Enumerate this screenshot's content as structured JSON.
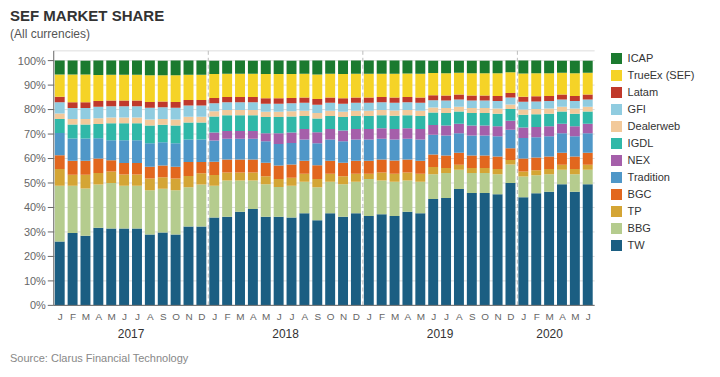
{
  "chart_data": {
    "type": "bar",
    "title": "SEF MARKET SHARE",
    "subtitle": "(All currencies)",
    "source": "Source: Clarus Financial Technology",
    "stacked": true,
    "grid": true,
    "categories": [
      "J",
      "F",
      "M",
      "A",
      "M",
      "J",
      "J",
      "A",
      "S",
      "O",
      "N",
      "D",
      "J",
      "F",
      "M",
      "A",
      "M",
      "J",
      "J",
      "A",
      "S",
      "O",
      "N",
      "D",
      "J",
      "F",
      "M",
      "A",
      "M",
      "J",
      "J",
      "A",
      "S",
      "O",
      "N",
      "D",
      "J",
      "F",
      "M",
      "A",
      "M",
      "J"
    ],
    "ylim": [
      0,
      104
    ],
    "yticks": [
      {
        "value": 0,
        "label": "0%"
      },
      {
        "value": 10,
        "label": "10%"
      },
      {
        "value": 20,
        "label": "20%"
      },
      {
        "value": 30,
        "label": "30%"
      },
      {
        "value": 40,
        "label": "40%"
      },
      {
        "value": 50,
        "label": "50%"
      },
      {
        "value": 60,
        "label": "60%"
      },
      {
        "value": 70,
        "label": "70%"
      },
      {
        "value": 80,
        "label": "80%"
      },
      {
        "value": 90,
        "label": "90%"
      },
      {
        "value": 100,
        "label": "100%"
      }
    ],
    "annotations": [
      {
        "text": "2017",
        "x": 5.5
      },
      {
        "text": "2018",
        "x": 17.5
      },
      {
        "text": "2019",
        "x": 29.5
      },
      {
        "text": "2020",
        "x": 38.0
      }
    ],
    "dividers": [
      11.5,
      23.5,
      35.5
    ],
    "series": [
      {
        "name": "TW",
        "color": "#1b5e82",
        "values": [
          26.14,
          29.55,
          28.41,
          31.76,
          31.4,
          31.4,
          31.4,
          28.92,
          29.76,
          28.92,
          32.18,
          32.18,
          35.87,
          36.17,
          38.3,
          39.36,
          36.26,
          36.26,
          35.87,
          37.63,
          34.83,
          37.63,
          36.26,
          37.63,
          36.56,
          37.23,
          36.56,
          38.3,
          37.63,
          43.43,
          43.88,
          47.52,
          45.92,
          45.92,
          45.36,
          50,
          44.21,
          45.83,
          46.39,
          49.5,
          46.39,
          49.5
        ]
      },
      {
        "name": "BBG",
        "color": "#b5cc8e",
        "values": [
          22.73,
          19.32,
          19.32,
          17.65,
          18.6,
          17.44,
          17.44,
          18.07,
          17.86,
          18.07,
          16.09,
          17.24,
          13.04,
          14.89,
          12.77,
          11.7,
          13.19,
          12.09,
          13.04,
          12.9,
          13.48,
          12.9,
          13.19,
          12.9,
          15.05,
          13.83,
          13.98,
          12.77,
          12.9,
          10.1,
          10.2,
          7.92,
          8.16,
          8.16,
          8.25,
          7.55,
          8.42,
          7.29,
          7.22,
          5.94,
          7.22,
          5.94
        ]
      },
      {
        "name": "TP",
        "color": "#d4a535",
        "values": [
          6.82,
          4.55,
          5.68,
          4.71,
          4.65,
          4.65,
          4.65,
          4.82,
          4.76,
          4.82,
          4.6,
          4.6,
          4.35,
          3.19,
          3.19,
          3.19,
          3.3,
          3.3,
          3.26,
          3.23,
          3.37,
          3.23,
          3.3,
          3.23,
          2.15,
          3.19,
          3.23,
          3.19,
          3.23,
          3.03,
          2.04,
          1.98,
          2.04,
          2.04,
          2.06,
          1.89,
          2.11,
          2.08,
          2.06,
          1.98,
          2.06,
          1.98
        ]
      },
      {
        "name": "BGC",
        "color": "#e2671e",
        "values": [
          5.68,
          5.68,
          5.68,
          5.88,
          4.65,
          4.65,
          4.65,
          4.82,
          4.76,
          4.82,
          5.75,
          4.6,
          5.43,
          5.32,
          5.32,
          5.32,
          5.49,
          5.49,
          5.43,
          5.38,
          5.62,
          5.38,
          5.49,
          5.38,
          5.38,
          5.32,
          5.38,
          5.32,
          5.38,
          5.05,
          5.1,
          4.95,
          5.1,
          5.1,
          5.15,
          4.72,
          5.26,
          5.21,
          5.15,
          4.95,
          5.15,
          4.95
        ]
      },
      {
        "name": "Tradition",
        "color": "#4f97c8",
        "values": [
          9.09,
          9.09,
          9.09,
          8.24,
          8.14,
          9.3,
          9.3,
          9.64,
          9.52,
          9.64,
          9.2,
          9.2,
          8.7,
          8.51,
          8.51,
          8.51,
          8.79,
          8.79,
          8.7,
          8.6,
          8.99,
          8.6,
          8.79,
          8.6,
          8.6,
          8.51,
          8.6,
          8.51,
          8.6,
          8.08,
          8.16,
          7.92,
          8.16,
          8.16,
          8.25,
          7.55,
          8.42,
          8.33,
          8.25,
          7.92,
          8.25,
          7.92
        ]
      },
      {
        "name": "NEX",
        "color": "#a55faa",
        "values": [
          0,
          0,
          0,
          0,
          0,
          0,
          0,
          0,
          0,
          0,
          0,
          0,
          3.26,
          3.19,
          3.19,
          3.19,
          3.3,
          4.4,
          4.35,
          4.3,
          4.49,
          4.3,
          4.4,
          4.3,
          4.3,
          4.26,
          4.3,
          4.26,
          4.3,
          4.04,
          4.08,
          3.96,
          4.08,
          4.08,
          4.12,
          3.77,
          4.21,
          4.17,
          4.12,
          3.96,
          4.12,
          3.96
        ]
      },
      {
        "name": "IGDL",
        "color": "#30b8a8",
        "values": [
          5.68,
          5.68,
          5.68,
          5.88,
          6.98,
          6.98,
          6.98,
          7.23,
          7.14,
          7.23,
          6.9,
          6.9,
          6.52,
          6.38,
          6.38,
          6.38,
          6.59,
          6.59,
          6.52,
          5.38,
          5.62,
          5.38,
          5.49,
          5.38,
          5.38,
          5.32,
          5.38,
          5.32,
          5.38,
          5.05,
          5.1,
          4.95,
          5.1,
          5.1,
          5.15,
          4.72,
          5.26,
          5.21,
          5.15,
          4.95,
          5.15,
          4.95
        ]
      },
      {
        "name": "Dealerweb",
        "color": "#f2c99a",
        "values": [
          2.27,
          2.27,
          2.27,
          2.35,
          2.33,
          2.33,
          2.33,
          2.41,
          2.38,
          2.41,
          2.3,
          2.3,
          2.17,
          2.13,
          2.13,
          2.13,
          2.2,
          2.2,
          2.17,
          2.15,
          2.25,
          2.15,
          2.2,
          2.15,
          2.15,
          2.13,
          2.15,
          2.13,
          2.15,
          2.02,
          2.04,
          1.98,
          2.04,
          2.04,
          2.06,
          1.89,
          2.11,
          2.08,
          2.06,
          1.98,
          2.06,
          1.98
        ]
      },
      {
        "name": "GFI",
        "color": "#90cce0",
        "values": [
          4.55,
          4.55,
          4.55,
          4.71,
          4.65,
          4.65,
          4.65,
          4.82,
          4.76,
          4.82,
          4.6,
          4.6,
          3.26,
          3.19,
          3.19,
          3.19,
          3.3,
          3.3,
          3.26,
          3.23,
          3.37,
          3.23,
          3.3,
          3.23,
          3.23,
          3.19,
          3.23,
          3.19,
          3.23,
          3.03,
          3.06,
          2.97,
          3.06,
          3.06,
          3.09,
          2.83,
          3.16,
          3.13,
          3.09,
          2.97,
          3.09,
          2.97
        ]
      },
      {
        "name": "Latam",
        "color": "#c0392b",
        "values": [
          2.27,
          2.27,
          2.27,
          2.35,
          2.33,
          2.33,
          2.33,
          2.41,
          2.38,
          2.41,
          2.3,
          2.3,
          2.17,
          2.13,
          2.13,
          2.13,
          2.2,
          2.2,
          2.17,
          2.15,
          2.25,
          2.15,
          2.2,
          2.15,
          2.15,
          2.13,
          2.15,
          2.13,
          2.15,
          2.02,
          2.04,
          1.98,
          2.04,
          2.04,
          2.06,
          1.89,
          2.11,
          2.08,
          2.06,
          1.98,
          2.06,
          1.98
        ]
      },
      {
        "name": "TrueEx (SEF)",
        "color": "#f5d327",
        "values": [
          9.09,
          11.36,
          11.36,
          10.59,
          10.47,
          10.47,
          10.47,
          10.84,
          10.71,
          10.84,
          10.34,
          10.34,
          9.78,
          9.57,
          9.57,
          9.57,
          9.89,
          9.89,
          9.78,
          9.68,
          10.11,
          9.68,
          9.89,
          9.68,
          9.68,
          9.57,
          9.68,
          9.57,
          9.68,
          9.09,
          9.18,
          8.91,
          9.18,
          9.18,
          9.28,
          8.49,
          9.47,
          9.38,
          9.28,
          8.91,
          9.28,
          8.91
        ]
      },
      {
        "name": "ICAP",
        "color": "#1b7a2f",
        "values": [
          5.68,
          5.68,
          5.68,
          5.88,
          5.81,
          5.81,
          5.81,
          6.02,
          5.95,
          6.02,
          5.75,
          5.75,
          5.43,
          5.32,
          5.32,
          5.32,
          5.49,
          5.49,
          5.43,
          5.38,
          5.62,
          5.38,
          5.49,
          5.38,
          5.38,
          5.32,
          5.38,
          5.32,
          5.38,
          5.05,
          5.1,
          4.95,
          5.1,
          5.1,
          5.15,
          4.72,
          5.26,
          5.21,
          5.15,
          4.95,
          5.15,
          4.95
        ]
      }
    ]
  }
}
